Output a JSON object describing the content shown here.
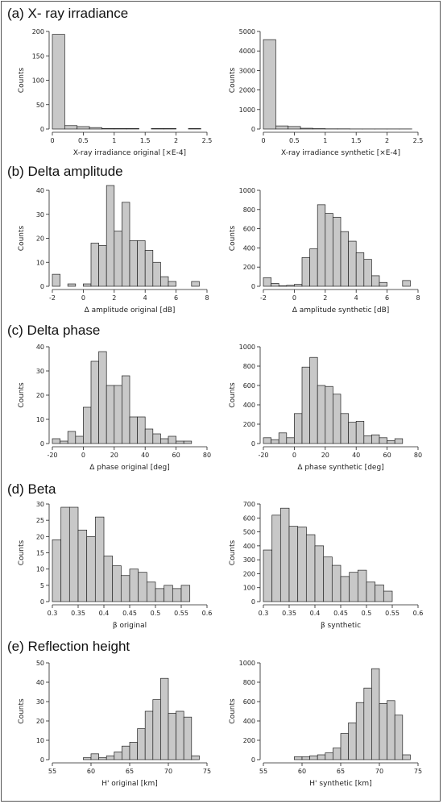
{
  "sections": [
    {
      "title": "(a) X- ray irradiance"
    },
    {
      "title": "(b) Delta amplitude"
    },
    {
      "title": "(c) Delta phase"
    },
    {
      "title": "(d) Beta"
    },
    {
      "title": "(e) Reflection height"
    }
  ],
  "colors": {
    "bar_fill": "#c8c8c8",
    "bar_stroke": "#222222",
    "axis": "#222222"
  },
  "chart_data": [
    {
      "type": "bar",
      "id": "a-original",
      "xlabel": "X-ray irradiance original [×E-4]",
      "ylabel": "Counts",
      "xlim": [
        0,
        2.5
      ],
      "ylim": [
        0,
        200
      ],
      "xticks": [
        0,
        0.5,
        1,
        1.5,
        2,
        2.5
      ],
      "xtick_labels": [
        "0",
        "0.5",
        "1",
        "1.5",
        "2",
        "2.5"
      ],
      "yticks": [
        0,
        50,
        100,
        150,
        200
      ],
      "ytick_labels": [
        "0",
        "50",
        "100",
        "150",
        "200"
      ],
      "bin_width": 0.2,
      "bins": [
        0,
        0.2,
        0.4,
        0.6,
        0.8,
        1.0,
        1.2,
        1.4,
        1.6,
        1.8,
        2.0,
        2.2
      ],
      "values": [
        194,
        7,
        5,
        3,
        1,
        1,
        1,
        0,
        1,
        1,
        0,
        1
      ]
    },
    {
      "type": "bar",
      "id": "a-synthetic",
      "xlabel": "X-ray irradiance synthetic [×E-4]",
      "ylabel": "Counts",
      "xlim": [
        0,
        2.5
      ],
      "ylim": [
        0,
        5000
      ],
      "xticks": [
        0,
        0.5,
        1,
        1.5,
        2,
        2.5
      ],
      "xtick_labels": [
        "0",
        "0.5",
        "1",
        "1.5",
        "2",
        "2.5"
      ],
      "yticks": [
        0,
        1000,
        2000,
        3000,
        4000,
        5000
      ],
      "ytick_labels": [
        "0",
        "1000",
        "2000",
        "3000",
        "4000",
        "5000"
      ],
      "bin_width": 0.2,
      "bins": [
        0,
        0.2,
        0.4,
        0.6,
        0.8,
        1.0,
        1.2,
        1.4,
        1.6,
        1.8,
        2.0,
        2.2
      ],
      "values": [
        4580,
        160,
        130,
        40,
        20,
        10,
        10,
        5,
        5,
        5,
        5,
        5
      ]
    },
    {
      "type": "bar",
      "id": "b-original",
      "xlabel": "Δ amplitude original [dB]",
      "ylabel": "Counts",
      "xlim": [
        -2,
        8
      ],
      "ylim": [
        0,
        40
      ],
      "xticks": [
        -2,
        0,
        2,
        4,
        6,
        8
      ],
      "xtick_labels": [
        "-2",
        "0",
        "2",
        "4",
        "6",
        "8"
      ],
      "yticks": [
        0,
        10,
        20,
        30,
        40
      ],
      "ytick_labels": [
        "0",
        "10",
        "20",
        "30",
        "40"
      ],
      "bin_width": 0.5,
      "bins": [
        -2,
        -1.5,
        -1,
        -0.5,
        0,
        0.5,
        1,
        1.5,
        2,
        2.5,
        3,
        3.5,
        4,
        4.5,
        5,
        5.5,
        6,
        6.5,
        7
      ],
      "values": [
        5,
        0,
        1,
        0,
        1,
        18,
        17,
        42,
        23,
        35,
        19,
        19,
        15,
        10,
        4,
        2,
        0,
        0,
        2
      ]
    },
    {
      "type": "bar",
      "id": "b-synthetic",
      "xlabel": "Δ amplitude synthetic [dB]",
      "ylabel": "Counts",
      "xlim": [
        -2,
        8
      ],
      "ylim": [
        0,
        1000
      ],
      "xticks": [
        -2,
        0,
        2,
        4,
        6,
        8
      ],
      "xtick_labels": [
        "-2",
        "0",
        "2",
        "4",
        "6",
        "8"
      ],
      "yticks": [
        0,
        200,
        400,
        600,
        800,
        1000
      ],
      "ytick_labels": [
        "0",
        "200",
        "400",
        "600",
        "800",
        "1000"
      ],
      "bin_width": 0.5,
      "bins": [
        -2,
        -1.5,
        -1,
        -0.5,
        0,
        0.5,
        1,
        1.5,
        2,
        2.5,
        3,
        3.5,
        4,
        4.5,
        5,
        5.5,
        6,
        6.5,
        7
      ],
      "values": [
        90,
        30,
        5,
        10,
        20,
        300,
        390,
        850,
        760,
        720,
        570,
        470,
        350,
        280,
        110,
        40,
        0,
        0,
        60
      ]
    },
    {
      "type": "bar",
      "id": "c-original",
      "xlabel": "Δ phase original [deg]",
      "ylabel": "Counts",
      "xlim": [
        -20,
        80
      ],
      "ylim": [
        0,
        40
      ],
      "xticks": [
        -20,
        0,
        20,
        40,
        60,
        80
      ],
      "xtick_labels": [
        "-20",
        "0",
        "20",
        "40",
        "60",
        "80"
      ],
      "yticks": [
        0,
        10,
        20,
        30,
        40
      ],
      "ytick_labels": [
        "0",
        "10",
        "20",
        "30",
        "40"
      ],
      "bin_width": 5,
      "bins": [
        -20,
        -15,
        -10,
        -5,
        0,
        5,
        10,
        15,
        20,
        25,
        30,
        35,
        40,
        45,
        50,
        55,
        60,
        65
      ],
      "values": [
        2,
        1,
        5,
        3,
        15,
        34,
        38,
        24,
        24,
        28,
        11,
        11,
        6,
        4,
        2,
        3,
        1,
        1
      ]
    },
    {
      "type": "bar",
      "id": "c-synthetic",
      "xlabel": "Δ phase synthetic [deg]",
      "ylabel": "Counts",
      "xlim": [
        -20,
        80
      ],
      "ylim": [
        0,
        1000
      ],
      "xticks": [
        -20,
        0,
        20,
        40,
        60,
        80
      ],
      "xtick_labels": [
        "-20",
        "0",
        "20",
        "40",
        "60",
        "80"
      ],
      "yticks": [
        0,
        200,
        400,
        600,
        800,
        1000
      ],
      "ytick_labels": [
        "0",
        "200",
        "400",
        "600",
        "800",
        "1000"
      ],
      "bin_width": 5,
      "bins": [
        -20,
        -15,
        -10,
        -5,
        0,
        5,
        10,
        15,
        20,
        25,
        30,
        35,
        40,
        45,
        50,
        55,
        60,
        65
      ],
      "values": [
        60,
        40,
        110,
        60,
        310,
        790,
        890,
        600,
        590,
        510,
        310,
        220,
        230,
        80,
        90,
        60,
        30,
        50
      ]
    },
    {
      "type": "bar",
      "id": "d-original",
      "xlabel": "β original",
      "ylabel": "Counts",
      "xlim": [
        0.3,
        0.6
      ],
      "ylim": [
        0,
        30
      ],
      "xticks": [
        0.3,
        0.35,
        0.4,
        0.45,
        0.5,
        0.55,
        0.6
      ],
      "xtick_labels": [
        "0.3",
        "0.35",
        "0.4",
        "0.45",
        "0.5",
        "0.55",
        "0.6"
      ],
      "yticks": [
        0,
        5,
        10,
        15,
        20,
        25,
        30
      ],
      "ytick_labels": [
        "0",
        "5",
        "10",
        "15",
        "20",
        "25",
        "30"
      ],
      "bin_width": 0.0167,
      "bins": [
        0.3,
        0.3167,
        0.3333,
        0.35,
        0.3667,
        0.3833,
        0.4,
        0.4167,
        0.4333,
        0.45,
        0.4667,
        0.4833,
        0.5,
        0.5167,
        0.5333,
        0.55,
        0.5667
      ],
      "values": [
        19,
        29,
        29,
        22,
        20,
        26,
        14,
        11,
        8,
        10,
        9,
        6,
        4,
        5,
        4,
        5,
        0
      ]
    },
    {
      "type": "bar",
      "id": "d-synthetic",
      "xlabel": "β synthetic",
      "ylabel": "Counts",
      "xlim": [
        0.3,
        0.6
      ],
      "ylim": [
        0,
        700
      ],
      "xticks": [
        0.3,
        0.35,
        0.4,
        0.45,
        0.5,
        0.55,
        0.6
      ],
      "xtick_labels": [
        "0.3",
        "0.35",
        "0.4",
        "0.45",
        "0.5",
        "0.55",
        "0.6"
      ],
      "yticks": [
        0,
        100,
        200,
        300,
        400,
        500,
        600,
        700
      ],
      "ytick_labels": [
        "0",
        "100",
        "200",
        "300",
        "400",
        "500",
        "600",
        "700"
      ],
      "bin_width": 0.0167,
      "bins": [
        0.3,
        0.3167,
        0.3333,
        0.35,
        0.3667,
        0.3833,
        0.4,
        0.4167,
        0.4333,
        0.45,
        0.4667,
        0.4833,
        0.5,
        0.5167,
        0.5333,
        0.55,
        0.5667
      ],
      "values": [
        370,
        620,
        670,
        540,
        535,
        480,
        400,
        320,
        260,
        180,
        210,
        225,
        140,
        120,
        75,
        0,
        0
      ]
    },
    {
      "type": "bar",
      "id": "e-original",
      "xlabel": "H' original [km]",
      "ylabel": "Counts",
      "xlim": [
        55,
        75
      ],
      "ylim": [
        0,
        50
      ],
      "xticks": [
        55,
        60,
        65,
        70,
        75
      ],
      "xtick_labels": [
        "55",
        "60",
        "65",
        "70",
        "75"
      ],
      "yticks": [
        0,
        10,
        20,
        30,
        40,
        50
      ],
      "ytick_labels": [
        "0",
        "10",
        "20",
        "30",
        "40",
        "50"
      ],
      "bin_width": 1,
      "bins": [
        59,
        60,
        61,
        62,
        63,
        64,
        65,
        66,
        67,
        68,
        69,
        70,
        71,
        72,
        73
      ],
      "values": [
        1,
        3,
        1,
        2,
        4,
        7,
        9,
        16,
        25,
        31,
        42,
        24,
        25,
        22,
        2
      ]
    },
    {
      "type": "bar",
      "id": "e-synthetic",
      "xlabel": "H' synthetic [km]",
      "ylabel": "Counts",
      "xlim": [
        55,
        75
      ],
      "ylim": [
        0,
        1000
      ],
      "xticks": [
        55,
        60,
        65,
        70,
        75
      ],
      "xtick_labels": [
        "55",
        "60",
        "65",
        "70",
        "75"
      ],
      "yticks": [
        0,
        200,
        400,
        600,
        800,
        1000
      ],
      "ytick_labels": [
        "0",
        "200",
        "400",
        "600",
        "800",
        "1000"
      ],
      "bin_width": 1,
      "bins": [
        59,
        60,
        61,
        62,
        63,
        64,
        65,
        66,
        67,
        68,
        69,
        70,
        71,
        72,
        73
      ],
      "values": [
        30,
        30,
        40,
        50,
        70,
        120,
        270,
        380,
        590,
        740,
        940,
        580,
        610,
        460,
        50
      ]
    }
  ]
}
